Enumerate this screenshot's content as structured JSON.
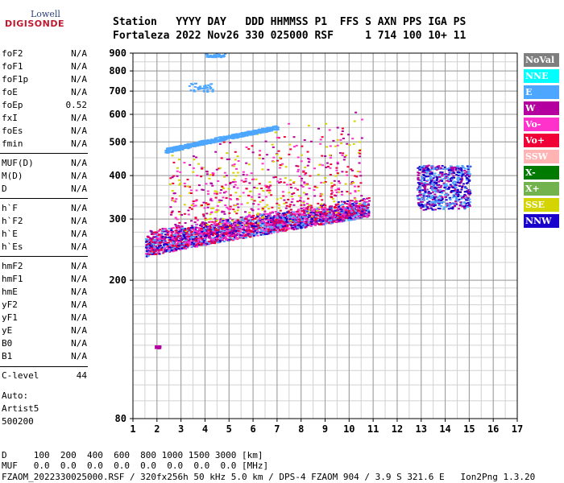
{
  "logo": {
    "top": "Lowell",
    "main": "DIGISONDE"
  },
  "header": {
    "row1": "Station   YYYY DAY   DDD HHMMSS P1  FFS S AXN PPS IGA PS",
    "row2": "Fortaleza 2022 Nov26 330 025000 RSF     1 714 100 10+ 11"
  },
  "params": {
    "group1": [
      {
        "name": "foF2",
        "value": "N/A"
      },
      {
        "name": "foF1",
        "value": "N/A"
      },
      {
        "name": "foF1p",
        "value": "N/A"
      },
      {
        "name": "foE",
        "value": "N/A"
      },
      {
        "name": "foEp",
        "value": "0.52"
      },
      {
        "name": "fxI",
        "value": "N/A"
      },
      {
        "name": "foEs",
        "value": "N/A"
      },
      {
        "name": "fmin",
        "value": "N/A"
      }
    ],
    "group2": [
      {
        "name": "MUF(D)",
        "value": "N/A"
      },
      {
        "name": "M(D)",
        "value": "N/A"
      },
      {
        "name": "D",
        "value": "N/A"
      }
    ],
    "group3": [
      {
        "name": "h`F",
        "value": "N/A"
      },
      {
        "name": "h`F2",
        "value": "N/A"
      },
      {
        "name": "h`E",
        "value": "N/A"
      },
      {
        "name": "h`Es",
        "value": "N/A"
      }
    ],
    "group4": [
      {
        "name": "hmF2",
        "value": "N/A"
      },
      {
        "name": "hmF1",
        "value": "N/A"
      },
      {
        "name": "hmE",
        "value": "N/A"
      },
      {
        "name": "yF2",
        "value": "N/A"
      },
      {
        "name": "yF1",
        "value": "N/A"
      },
      {
        "name": "yE",
        "value": "N/A"
      },
      {
        "name": "B0",
        "value": "N/A"
      },
      {
        "name": "B1",
        "value": "N/A"
      }
    ],
    "clevel": {
      "name": "C-level",
      "value": "44"
    },
    "auto": [
      "Auto:",
      "Artist5",
      "500200"
    ]
  },
  "legend": [
    {
      "label": "NoVal",
      "color": "#7f7f7f"
    },
    {
      "label": "NNE",
      "color": "#00ffff"
    },
    {
      "label": "E",
      "color": "#4da6ff"
    },
    {
      "label": "W",
      "color": "#b3009e"
    },
    {
      "label": "Vo-",
      "color": "#ff33cc"
    },
    {
      "label": "Vo+",
      "color": "#f00036"
    },
    {
      "label": "SSW",
      "color": "#ffb3b3"
    },
    {
      "label": "X-",
      "color": "#007a00"
    },
    {
      "label": "X+",
      "color": "#73b34d"
    },
    {
      "label": "SSE",
      "color": "#d4d400"
    },
    {
      "label": "NNW",
      "color": "#1a00cc"
    }
  ],
  "bottom": {
    "d_row": "D     100  200  400  600  800 1000 1500 3000 [km]",
    "muf_row": "MUF   0.0  0.0  0.0  0.0  0.0  0.0  0.0  0.0 [MHz]",
    "footer": "FZAOM_2022330025000.RSF / 320fx256h 50 kHz 5.0 km / DPS-4 FZAOM 904 / 3.9 S 321.6 E   Ion2Png 1.3.20"
  },
  "chart_data": {
    "type": "scatter",
    "xlabel": "",
    "ylabel": "",
    "xlim": [
      1,
      17
    ],
    "ylim": [
      80,
      900
    ],
    "xticks": [
      "1",
      "2",
      "3",
      "4",
      "5",
      "6",
      "7",
      "8",
      "9",
      "10",
      "11",
      "12",
      "13",
      "14",
      "15",
      "16",
      "17"
    ],
    "yticks": [
      "80",
      "200",
      "300",
      "400",
      "500",
      "600",
      "700",
      "800",
      "900"
    ],
    "y_scale": "log",
    "grid": true,
    "clusters": [
      {
        "name": "F-trace lower",
        "x": [
          1.5,
          10.8
        ],
        "y": [
          235,
          330
        ],
        "density": "high",
        "colors": [
          "#b3009e",
          "#ff33cc",
          "#f00036",
          "#4da6ff",
          "#1a00cc"
        ]
      },
      {
        "name": "F upper spread",
        "x": [
          2.5,
          10.5
        ],
        "y": [
          250,
          600
        ],
        "density": "medium",
        "colors": [
          "#ff33cc",
          "#b3009e",
          "#f00036",
          "#d4d400"
        ]
      },
      {
        "name": "Multi-hop trace",
        "x": [
          2.3,
          7.0
        ],
        "y": [
          465,
          560
        ],
        "density": "medium",
        "colors": [
          "#4da6ff"
        ]
      },
      {
        "name": "Third trace",
        "x": [
          3.3,
          4.4
        ],
        "y": [
          700,
          740
        ],
        "density": "low",
        "colors": [
          "#4da6ff"
        ]
      },
      {
        "name": "High echoes",
        "x": [
          4.0,
          4.8
        ],
        "y": [
          880,
          900
        ],
        "density": "low",
        "colors": [
          "#4da6ff"
        ]
      },
      {
        "name": "Oblique cluster",
        "x": [
          12.8,
          15.0
        ],
        "y": [
          320,
          430
        ],
        "density": "medium",
        "colors": [
          "#1a00cc",
          "#4da6ff",
          "#b3009e"
        ]
      },
      {
        "name": "Low tail",
        "x": [
          1.9,
          2.1
        ],
        "y": [
          128,
          130
        ],
        "density": "low",
        "colors": [
          "#b3009e"
        ]
      }
    ]
  }
}
